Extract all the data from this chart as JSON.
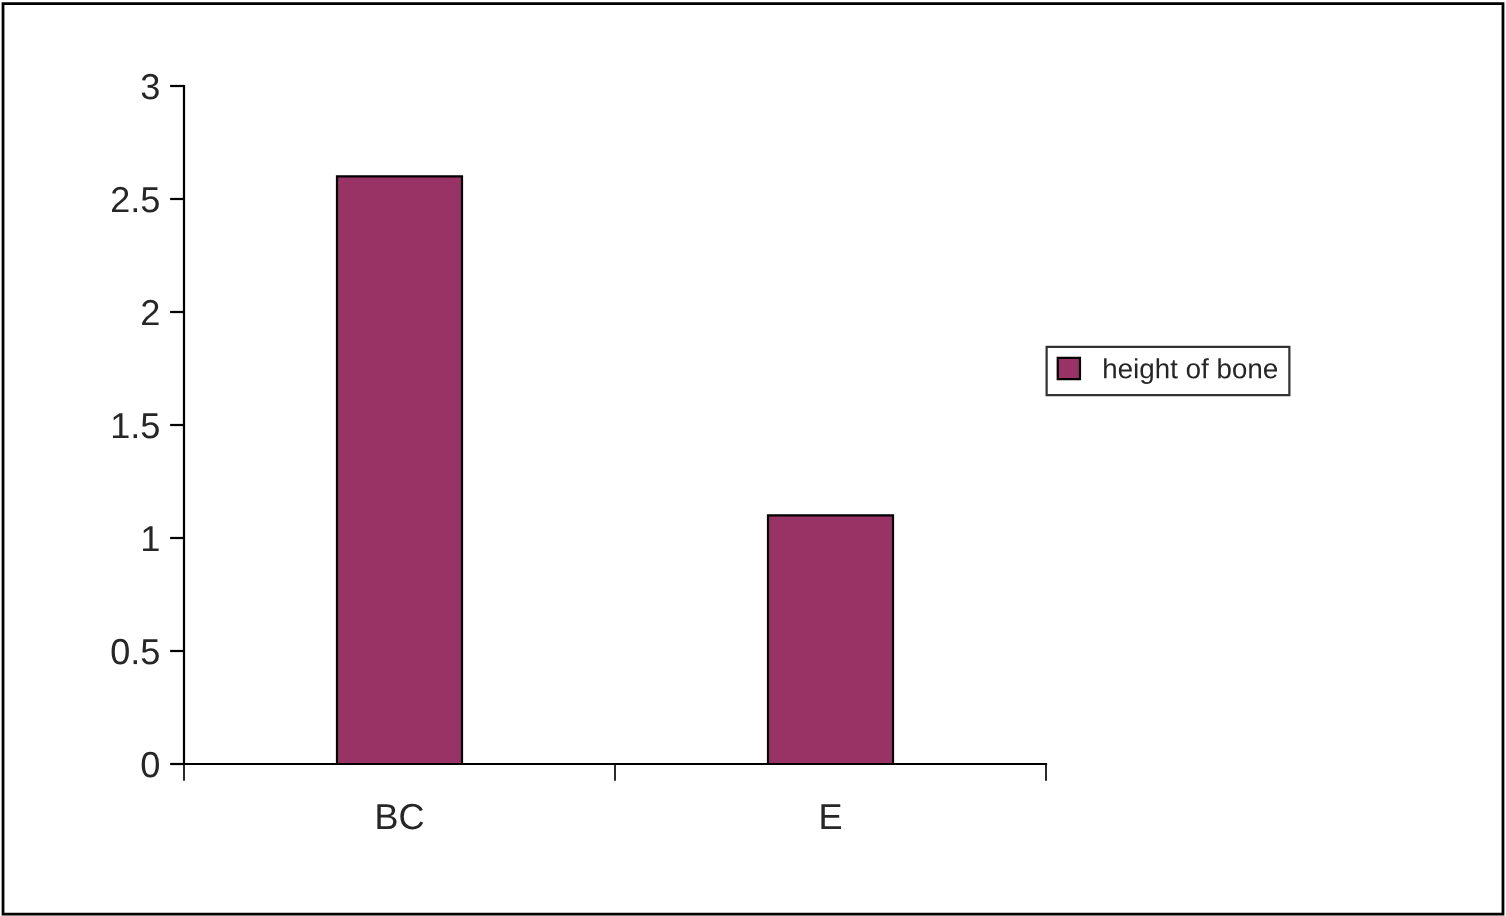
{
  "chart_data": {
    "type": "bar",
    "categories": [
      "BC",
      "E"
    ],
    "series": [
      {
        "name": "height of bone",
        "color": "#993366",
        "values": [
          2.6,
          1.1
        ]
      }
    ],
    "ylim": [
      0,
      3
    ],
    "yticks": [
      0,
      0.5,
      1,
      1.5,
      2,
      2.5,
      3
    ],
    "grid": false,
    "legend": "right"
  }
}
